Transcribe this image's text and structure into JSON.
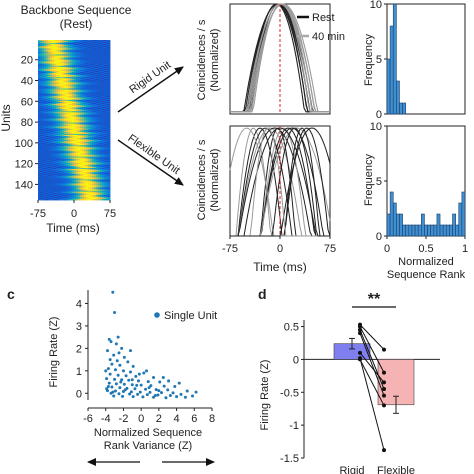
{
  "figure": {
    "panel_letters": [
      "c",
      "d"
    ],
    "significance": "**"
  },
  "chart_data": [
    {
      "id": "raster",
      "type": "heatmap",
      "title": "Backbone Sequence",
      "subtitle": "(Rest)",
      "xlabel": "Time (ms)",
      "ylabel": "Units",
      "x_ticks": [
        -75,
        0,
        75
      ],
      "y_ticks": [
        20,
        40,
        60,
        80,
        100,
        120,
        140
      ],
      "xlim": [
        -75,
        75
      ],
      "ylim": [
        1,
        155
      ],
      "n_units": 155,
      "colormap": [
        "#352a87",
        "#0f5cdd",
        "#1481d6",
        "#06a4ca",
        "#2eb7a4",
        "#87bf77",
        "#d1bb59",
        "#fec832",
        "#f9fb0e"
      ]
    },
    {
      "id": "arrows",
      "type": "annotation",
      "labels": [
        "Rigid Unit",
        "Flexible Unit"
      ]
    },
    {
      "id": "rigid-lines",
      "type": "line",
      "ylabel": "Coincidences / s",
      "ylabel2": "(Normalized)",
      "xlim": [
        -75,
        75
      ],
      "ylim": [
        0,
        1
      ],
      "legend": [
        "Rest",
        "40 min"
      ],
      "legend_colors": [
        "#111111",
        "#aaaaaa"
      ],
      "legend_position": "top-right",
      "peak_at": 0
    },
    {
      "id": "flex-lines",
      "type": "line",
      "ylabel": "Coincidences / s",
      "ylabel2": "(Normalized)",
      "xlabel": "Time (ms)",
      "x_ticks": [
        -75,
        0,
        75
      ],
      "xlim": [
        -75,
        75
      ],
      "ylim": [
        0,
        1
      ],
      "peak_at": 0
    },
    {
      "id": "hist-top",
      "type": "bar",
      "ylabel": "Frequency",
      "y_ticks": [
        0,
        5,
        10
      ],
      "ylim": [
        0,
        10
      ],
      "xlim": [
        0,
        1
      ],
      "bin_width": 0.04,
      "bin_starts": [
        0.0,
        0.04,
        0.08,
        0.12,
        0.16,
        0.2
      ],
      "values": [
        5,
        8,
        10,
        3,
        1,
        1
      ],
      "color": "#3f8fd2"
    },
    {
      "id": "hist-bottom",
      "type": "bar",
      "ylabel": "Frequency",
      "xlabel": "Normalized",
      "xlabel2": "Sequence Rank",
      "x_ticks": [
        "0",
        "0.5",
        "1"
      ],
      "x_tick_values": [
        0,
        0.5,
        1
      ],
      "y_ticks": [
        0,
        5,
        10
      ],
      "ylim": [
        0,
        10
      ],
      "xlim": [
        0,
        1
      ],
      "bin_width": 0.04,
      "bin_starts": [
        0.0,
        0.04,
        0.08,
        0.12,
        0.16,
        0.2,
        0.24,
        0.28,
        0.32,
        0.36,
        0.4,
        0.44,
        0.48,
        0.52,
        0.56,
        0.6,
        0.64,
        0.68,
        0.72,
        0.76,
        0.8,
        0.84,
        0.88,
        0.92,
        0.96
      ],
      "values": [
        2,
        4,
        3,
        2,
        2,
        1,
        1,
        1,
        1,
        1,
        1,
        2,
        1,
        1,
        1,
        1,
        2,
        1,
        1,
        1,
        1,
        2,
        1,
        3,
        4
      ],
      "color": "#3f8fd2"
    },
    {
      "id": "scatter-c",
      "type": "scatter",
      "xlabel": "Normalized Sequence",
      "xlabel2": "Rank Variance (Z)",
      "ylabel": "Firing Rate (Z)",
      "x_ticks": [
        -6,
        -4,
        -2,
        0,
        2,
        4,
        6,
        8
      ],
      "y_ticks": [
        0,
        1,
        2,
        3,
        4
      ],
      "xlim": [
        -6,
        8
      ],
      "ylim": [
        -0.3,
        4.6
      ],
      "legend": [
        "Single Unit"
      ],
      "legend_position": "top-right",
      "color": "#1f77b4",
      "points": [
        [
          -3.2,
          4.5
        ],
        [
          -3.0,
          3.6
        ],
        [
          -3.6,
          2.4
        ],
        [
          -3.4,
          2.3
        ],
        [
          -2.8,
          2.2
        ],
        [
          -2.2,
          2.0
        ],
        [
          -3.8,
          1.9
        ],
        [
          -2.5,
          1.8
        ],
        [
          -3.1,
          1.7
        ],
        [
          -1.9,
          1.6
        ],
        [
          -3.5,
          1.5
        ],
        [
          -2.7,
          1.45
        ],
        [
          -1.5,
          1.4
        ],
        [
          -3.3,
          1.3
        ],
        [
          -2.4,
          1.25
        ],
        [
          -0.9,
          1.2
        ],
        [
          -3.7,
          1.1
        ],
        [
          -2.9,
          1.05
        ],
        [
          -2.0,
          1.0
        ],
        [
          -1.2,
          0.95
        ],
        [
          0.3,
          0.9
        ],
        [
          -3.5,
          0.85
        ],
        [
          -2.6,
          0.8
        ],
        [
          -1.7,
          0.78
        ],
        [
          -0.6,
          0.75
        ],
        [
          1.4,
          0.7
        ],
        [
          -3.9,
          0.65
        ],
        [
          -3.0,
          0.62
        ],
        [
          -2.2,
          0.6
        ],
        [
          -1.4,
          0.58
        ],
        [
          -0.3,
          0.55
        ],
        [
          0.8,
          0.52
        ],
        [
          2.1,
          0.5
        ],
        [
          -3.6,
          0.45
        ],
        [
          -2.8,
          0.42
        ],
        [
          -1.9,
          0.4
        ],
        [
          -1.0,
          0.38
        ],
        [
          0.0,
          0.36
        ],
        [
          1.1,
          0.34
        ],
        [
          2.6,
          0.32
        ],
        [
          -3.3,
          0.28
        ],
        [
          -2.4,
          0.25
        ],
        [
          -1.6,
          0.22
        ],
        [
          -0.7,
          0.2
        ],
        [
          0.5,
          0.18
        ],
        [
          1.7,
          0.16
        ],
        [
          3.0,
          0.15
        ],
        [
          -3.8,
          0.12
        ],
        [
          -2.9,
          0.1
        ],
        [
          -2.0,
          0.08
        ],
        [
          -1.1,
          0.06
        ],
        [
          -0.1,
          0.05
        ],
        [
          1.0,
          0.04
        ],
        [
          2.3,
          0.03
        ],
        [
          3.6,
          0.02
        ],
        [
          -3.4,
          0.0
        ],
        [
          -2.5,
          -0.02
        ],
        [
          -1.3,
          -0.03
        ],
        [
          -0.4,
          -0.05
        ],
        [
          0.7,
          -0.06
        ],
        [
          1.9,
          -0.08
        ],
        [
          3.3,
          -0.1
        ],
        [
          4.5,
          -0.05
        ],
        [
          5.2,
          0.1
        ],
        [
          -3.1,
          -0.12
        ],
        [
          -2.1,
          -0.14
        ],
        [
          -0.9,
          -0.15
        ],
        [
          0.2,
          -0.16
        ],
        [
          1.4,
          -0.18
        ],
        [
          2.8,
          -0.2
        ],
        [
          4.0,
          -0.15
        ],
        [
          5.8,
          -0.12
        ],
        [
          -3.7,
          0.3
        ],
        [
          -2.3,
          0.5
        ],
        [
          -1.8,
          0.15
        ],
        [
          -0.5,
          0.35
        ],
        [
          0.9,
          0.25
        ],
        [
          2.0,
          0.12
        ],
        [
          3.8,
          0.3
        ],
        [
          6.2,
          0.05
        ],
        [
          -4.0,
          1.0
        ],
        [
          -3.9,
          0.2
        ],
        [
          -1.0,
          0.6
        ],
        [
          4.3,
          0.45
        ],
        [
          5.0,
          -0.18
        ],
        [
          2.5,
          0.7
        ],
        [
          -2.6,
          2.5
        ],
        [
          -1.2,
          1.9
        ],
        [
          0.6,
          1.0
        ],
        [
          3.1,
          0.55
        ],
        [
          -3.2,
          0.05
        ],
        [
          1.6,
          -0.1
        ],
        [
          -0.2,
          0.85
        ]
      ]
    },
    {
      "id": "bars-d",
      "type": "bar",
      "ylabel": "Firing Rate (Z)",
      "y_ticks": [
        -1.5,
        -1,
        -0.5,
        0,
        0.5
      ],
      "ylim": [
        -1.5,
        0.6
      ],
      "categories": [
        "Rigid",
        "Flexible"
      ],
      "values": [
        0.24,
        -0.69
      ],
      "errors": [
        0.08,
        0.13
      ],
      "colors": [
        "#7f7fef",
        "#f5b3b3"
      ],
      "paired_units": [
        [
          0.53,
          0.15
        ],
        [
          0.5,
          -0.2
        ],
        [
          0.45,
          -0.45
        ],
        [
          0.4,
          -0.55
        ],
        [
          0.1,
          -0.35
        ],
        [
          0.0,
          -0.7
        ],
        [
          0.02,
          -1.38
        ]
      ]
    }
  ]
}
